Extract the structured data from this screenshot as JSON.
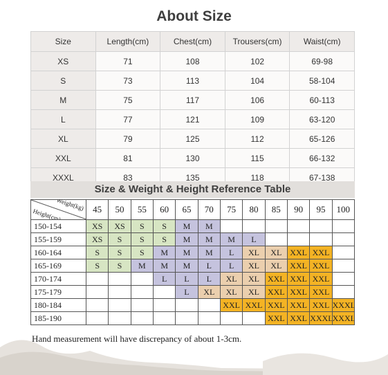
{
  "title": "About Size",
  "size_table": {
    "headers": [
      "Size",
      "Length(cm)",
      "Chest(cm)",
      "Trousers(cm)",
      "Waist(cm)"
    ],
    "rows": [
      [
        "XS",
        "71",
        "108",
        "102",
        "69-98"
      ],
      [
        "S",
        "73",
        "113",
        "104",
        "58-104"
      ],
      [
        "M",
        "75",
        "117",
        "106",
        "60-113"
      ],
      [
        "L",
        "77",
        "121",
        "109",
        "63-120"
      ],
      [
        "XL",
        "79",
        "125",
        "112",
        "65-126"
      ],
      [
        "XXL",
        "81",
        "130",
        "115",
        "66-132"
      ],
      [
        "XXXL",
        "83",
        "135",
        "118",
        "67-138"
      ]
    ]
  },
  "ref_table": {
    "title": "Size & Weight & Height Reference Table",
    "corner_weight_label": "Weight(kg)",
    "corner_height_label": "Height(cm)",
    "weights": [
      "45",
      "50",
      "55",
      "60",
      "65",
      "70",
      "75",
      "80",
      "85",
      "90",
      "95",
      "100"
    ],
    "rows": [
      {
        "height": "150-154",
        "cells": [
          "XS",
          "XS",
          "S",
          "S",
          "M",
          "M",
          "",
          "",
          "",
          "",
          "",
          ""
        ]
      },
      {
        "height": "155-159",
        "cells": [
          "XS",
          "S",
          "S",
          "S",
          "M",
          "M",
          "M",
          "L",
          "",
          "",
          "",
          ""
        ]
      },
      {
        "height": "160-164",
        "cells": [
          "S",
          "S",
          "S",
          "M",
          "M",
          "M",
          "L",
          "XL",
          "XL",
          "XXL",
          "XXL",
          ""
        ]
      },
      {
        "height": "165-169",
        "cells": [
          "S",
          "S",
          "M",
          "M",
          "M",
          "L",
          "L",
          "XL",
          "XL",
          "XXL",
          "XXL",
          ""
        ]
      },
      {
        "height": "170-174",
        "cells": [
          "",
          "",
          "",
          "L",
          "L",
          "L",
          "XL",
          "XL",
          "XXL",
          "XXL",
          "XXL",
          ""
        ]
      },
      {
        "height": "175-179",
        "cells": [
          "",
          "",
          "",
          "",
          "L",
          "XL",
          "XL",
          "XL",
          "XXL",
          "XXL",
          "XXL",
          ""
        ]
      },
      {
        "height": "180-184",
        "cells": [
          "",
          "",
          "",
          "",
          "",
          "",
          "XXL",
          "XXL",
          "XXL",
          "XXL",
          "XXL",
          "XXXL"
        ]
      },
      {
        "height": "185-190",
        "cells": [
          "",
          "",
          "",
          "",
          "",
          "",
          "",
          "",
          "XXL",
          "XXL",
          "XXXL",
          "XXXL"
        ]
      }
    ]
  },
  "colors": {
    "XS_S": "#d7e5c3",
    "M_L": "#c5c3de",
    "XL": "#ebcfae",
    "XXL_XXXL": "#f4b324"
  },
  "note": "Hand measurement will have discrepancy of about 1-3cm."
}
